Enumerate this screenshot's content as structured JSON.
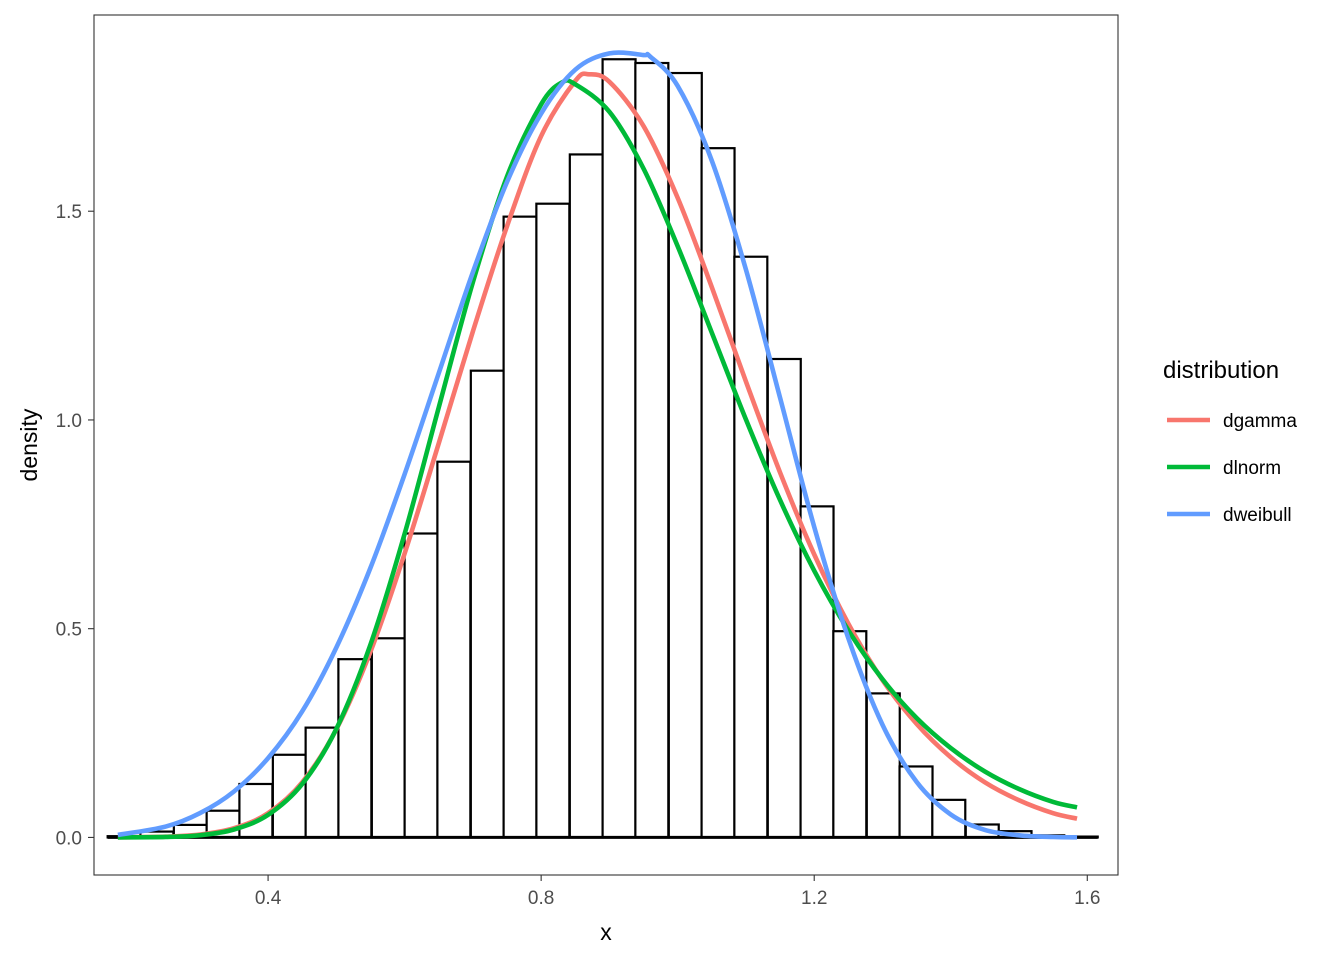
{
  "chart_data": {
    "type": "histogram",
    "xlabel": "x",
    "ylabel": "density",
    "xlim": [
      0.145,
      1.645
    ],
    "ylim": [
      -0.09,
      1.97
    ],
    "x_ticks": [
      0.4,
      0.8,
      1.2,
      1.6
    ],
    "x_tick_labels": [
      "0.4",
      "0.8",
      "1.2",
      "1.6"
    ],
    "y_ticks": [
      0.0,
      0.5,
      1.0,
      1.5
    ],
    "y_tick_labels": [
      "0.0",
      "0.5",
      "1.0",
      "1.5"
    ],
    "grid": false,
    "histogram": {
      "bin_width": 0.0483,
      "bin_starts": [
        0.165,
        0.213,
        0.262,
        0.31,
        0.358,
        0.407,
        0.455,
        0.503,
        0.552,
        0.6,
        0.648,
        0.697,
        0.745,
        0.793,
        0.842,
        0.89,
        0.938,
        0.987,
        1.035,
        1.083,
        1.132,
        1.18,
        1.228,
        1.277,
        1.325,
        1.373,
        1.422,
        1.47,
        1.518,
        1.567
      ],
      "densities": [
        0.003,
        0.014,
        0.03,
        0.064,
        0.128,
        0.198,
        0.263,
        0.427,
        0.477,
        0.728,
        0.9,
        1.118,
        1.487,
        1.518,
        1.636,
        1.864,
        1.855,
        1.831,
        1.651,
        1.391,
        1.146,
        0.793,
        0.494,
        0.345,
        0.17,
        0.09,
        0.031,
        0.015,
        0.005,
        0.002
      ]
    },
    "series": [
      {
        "name": "dgamma",
        "color": "#F8766D",
        "x": [
          0.18,
          0.25,
          0.3,
          0.35,
          0.4,
          0.45,
          0.5,
          0.55,
          0.6,
          0.65,
          0.7,
          0.75,
          0.8,
          0.85,
          0.87,
          0.9,
          0.95,
          1.0,
          1.05,
          1.1,
          1.15,
          1.2,
          1.25,
          1.3,
          1.35,
          1.4,
          1.45,
          1.5,
          1.55,
          1.585
        ],
        "values": [
          0.0002,
          0.0017,
          0.0068,
          0.022,
          0.058,
          0.132,
          0.259,
          0.445,
          0.68,
          0.944,
          1.212,
          1.464,
          1.68,
          1.812,
          1.828,
          1.81,
          1.704,
          1.532,
          1.318,
          1.092,
          0.874,
          0.678,
          0.512,
          0.377,
          0.272,
          0.192,
          0.132,
          0.089,
          0.058,
          0.045
        ]
      },
      {
        "name": "dlnorm",
        "color": "#00BA38",
        "x": [
          0.18,
          0.25,
          0.3,
          0.35,
          0.4,
          0.45,
          0.5,
          0.55,
          0.6,
          0.65,
          0.7,
          0.75,
          0.8,
          0.83,
          0.85,
          0.9,
          0.95,
          1.0,
          1.05,
          1.1,
          1.15,
          1.2,
          1.25,
          1.3,
          1.35,
          1.4,
          1.45,
          1.5,
          1.55,
          1.585
        ],
        "values": [
          0.0001,
          0.0011,
          0.0052,
          0.019,
          0.054,
          0.128,
          0.26,
          0.462,
          0.727,
          1.03,
          1.33,
          1.583,
          1.756,
          1.808,
          1.804,
          1.738,
          1.602,
          1.416,
          1.209,
          1.001,
          0.808,
          0.639,
          0.496,
          0.379,
          0.286,
          0.214,
          0.158,
          0.116,
          0.085,
          0.072
        ]
      },
      {
        "name": "dweibull",
        "color": "#619CFF",
        "x": [
          0.18,
          0.25,
          0.3,
          0.35,
          0.4,
          0.45,
          0.5,
          0.55,
          0.6,
          0.65,
          0.7,
          0.75,
          0.8,
          0.85,
          0.9,
          0.95,
          0.96,
          1.0,
          1.05,
          1.1,
          1.15,
          1.2,
          1.25,
          1.3,
          1.35,
          1.4,
          1.45,
          1.5,
          1.55,
          1.585
        ],
        "values": [
          0.006,
          0.026,
          0.058,
          0.11,
          0.19,
          0.302,
          0.455,
          0.646,
          0.87,
          1.112,
          1.354,
          1.57,
          1.734,
          1.839,
          1.878,
          1.874,
          1.87,
          1.8,
          1.621,
          1.36,
          1.053,
          0.744,
          0.477,
          0.27,
          0.133,
          0.055,
          0.018,
          0.005,
          0.001,
          0.0002
        ]
      }
    ],
    "legend": {
      "title": "distribution",
      "position": "right",
      "items": [
        "dgamma",
        "dlnorm",
        "dweibull"
      ]
    }
  }
}
